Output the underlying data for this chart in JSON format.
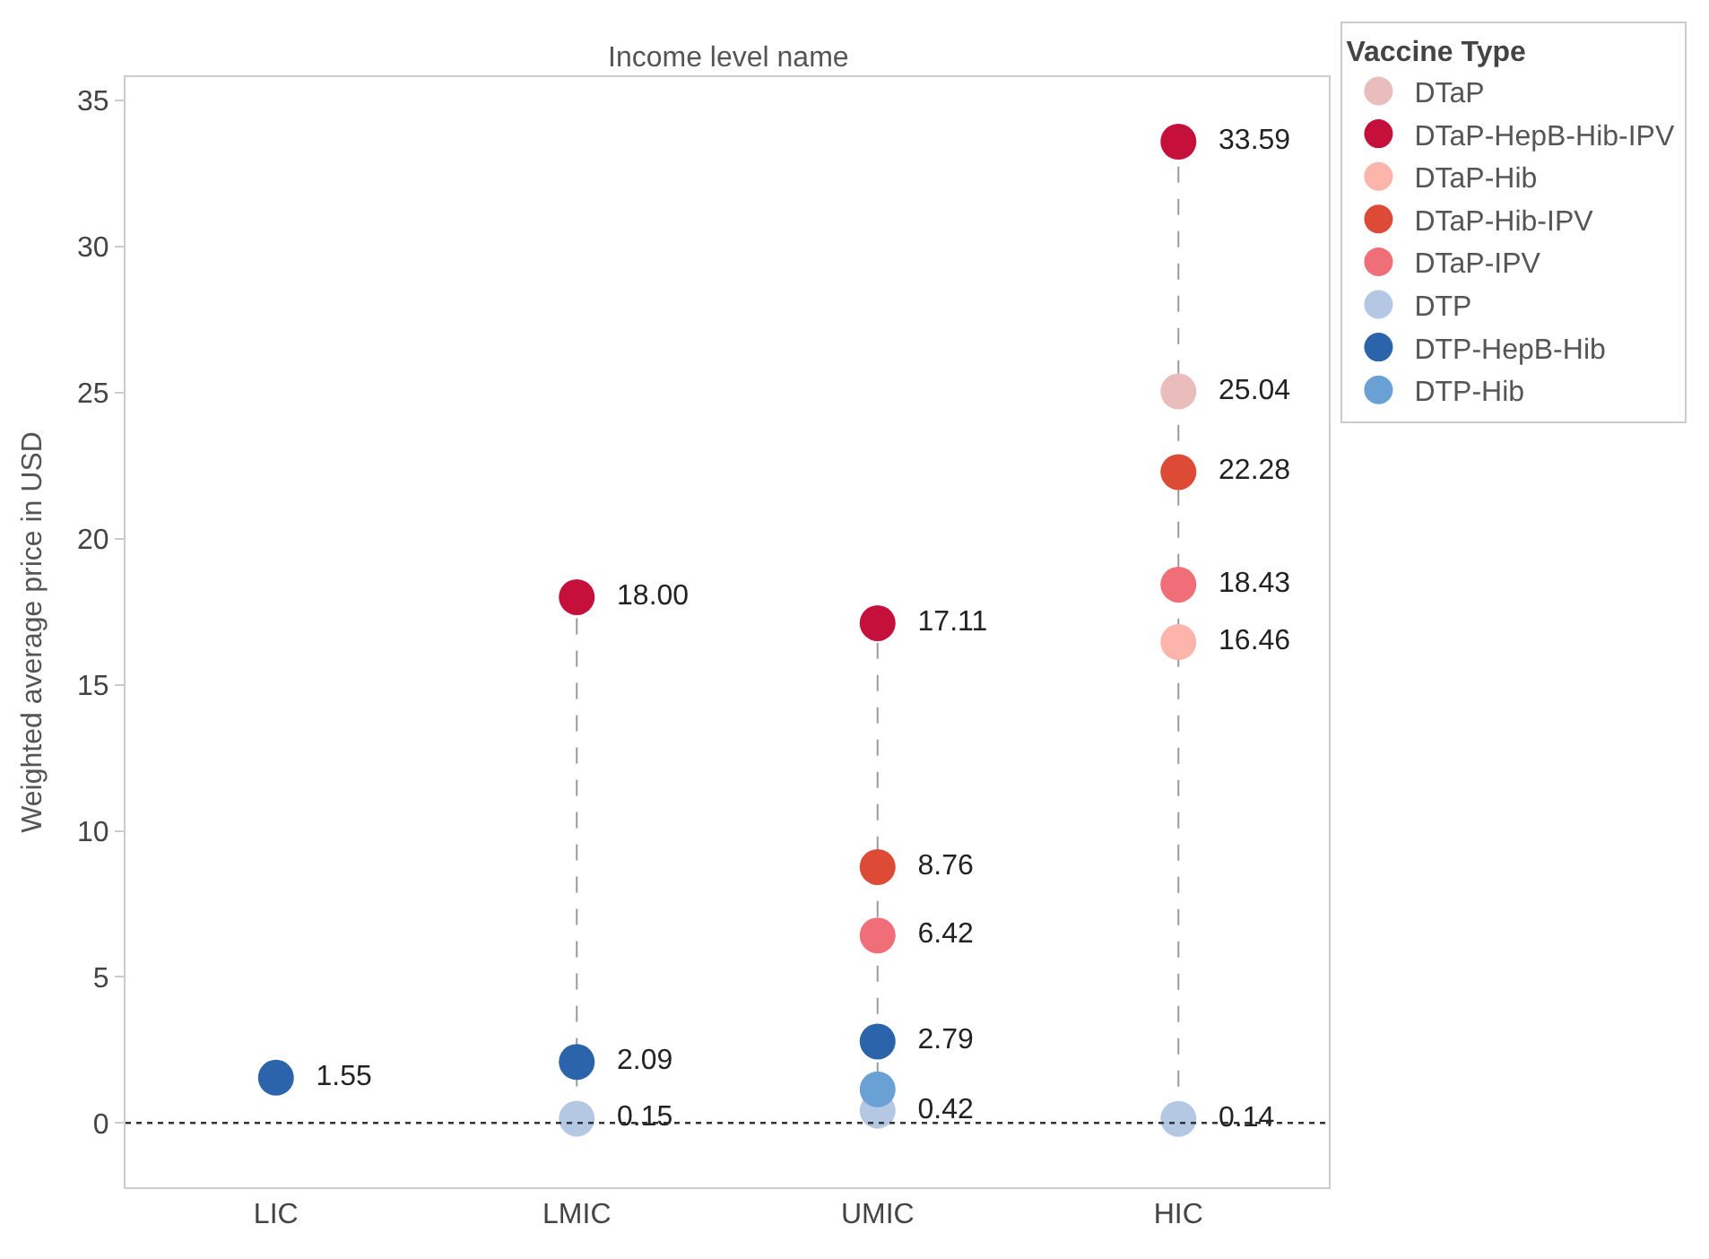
{
  "chart_data": {
    "type": "scatter",
    "xlabel": "Income level name",
    "ylabel": "Weighted average price in USD",
    "legend_title": "Vaccine Type",
    "categories": [
      "LIC",
      "LMIC",
      "UMIC",
      "HIC"
    ],
    "series": [
      {
        "name": "DTaP",
        "color": "#e8bdbc",
        "values": [
          null,
          null,
          null,
          25.04
        ],
        "value_labels": [
          null,
          null,
          null,
          "25.04"
        ]
      },
      {
        "name": "DTaP-HepB-Hib-IPV",
        "color": "#c4103b",
        "values": [
          null,
          18.0,
          17.11,
          33.59
        ],
        "value_labels": [
          null,
          "18.00",
          "17.11",
          "33.59"
        ]
      },
      {
        "name": "DTaP-Hib",
        "color": "#fdb4aa",
        "values": [
          null,
          null,
          null,
          16.46
        ],
        "value_labels": [
          null,
          null,
          null,
          "16.46"
        ]
      },
      {
        "name": "DTaP-Hib-IPV",
        "color": "#dd4b36",
        "values": [
          null,
          null,
          8.76,
          22.28
        ],
        "value_labels": [
          null,
          null,
          "8.76",
          "22.28"
        ]
      },
      {
        "name": "DTaP-IPV",
        "color": "#ef6e78",
        "values": [
          null,
          null,
          6.42,
          18.43
        ],
        "value_labels": [
          null,
          null,
          "6.42",
          "18.43"
        ]
      },
      {
        "name": "DTP",
        "color": "#b4c7e3",
        "values": [
          null,
          0.15,
          0.42,
          0.14
        ],
        "value_labels": [
          null,
          "0.15",
          "0.42",
          "0.14"
        ]
      },
      {
        "name": "DTP-HepB-Hib",
        "color": "#2c64ab",
        "values": [
          1.55,
          2.09,
          2.79,
          null
        ],
        "value_labels": [
          "1.55",
          "2.09",
          "2.79",
          null
        ]
      },
      {
        "name": "DTP-Hib",
        "color": "#6aa1d5",
        "values": [
          null,
          null,
          1.15,
          null
        ],
        "value_labels": [
          null,
          null,
          null,
          null
        ]
      }
    ],
    "ylim": [
      -2.2,
      35.8
    ],
    "yticks": [
      0,
      5,
      10,
      15,
      20,
      25,
      30,
      35
    ],
    "ref_lines": [
      {
        "axis": "y",
        "value": 0,
        "color": "#333333",
        "line_style": "dotted"
      }
    ],
    "marker": "circle",
    "grid": false,
    "legend": "top right"
  }
}
